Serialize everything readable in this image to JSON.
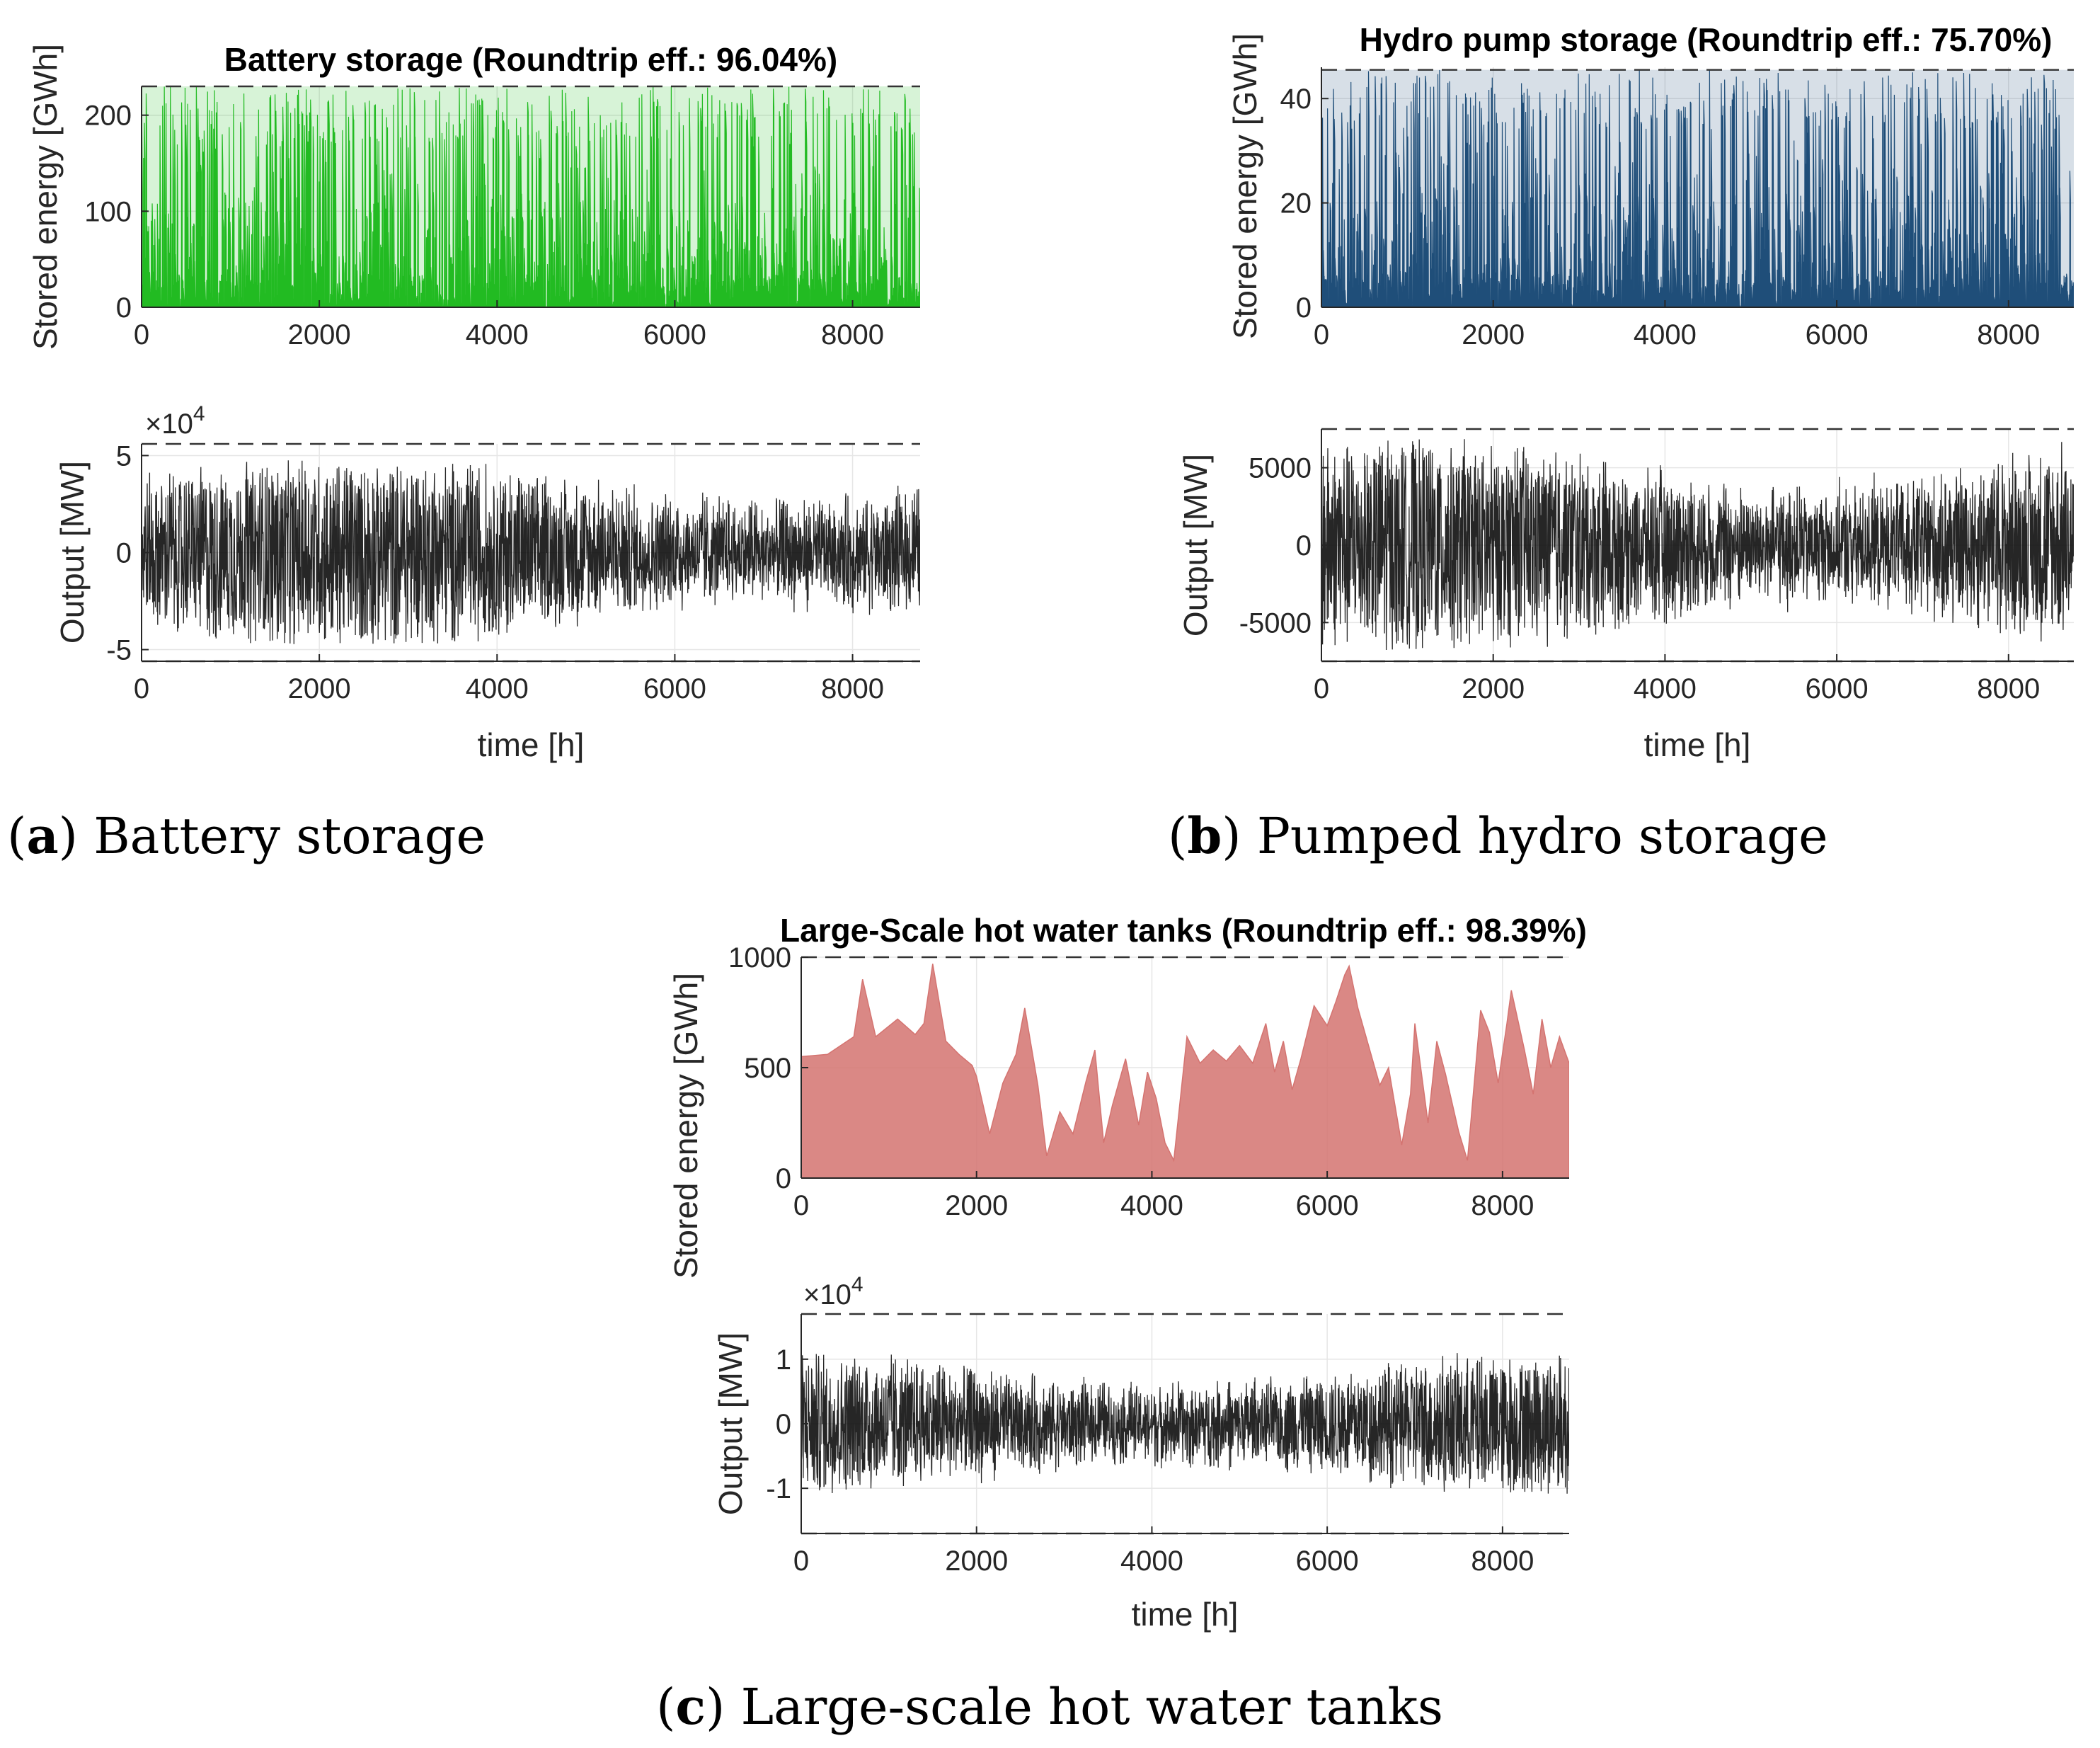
{
  "chart_data": [
    {
      "id": "a",
      "type": "area",
      "title": "Battery storage (Roundtrip eff.: 96.04%)",
      "color": "#22bb22",
      "style": "spiky",
      "storage": {
        "ylabel": "Stored energy [GWh]",
        "xlim": [
          0,
          8760
        ],
        "ylim": [
          0,
          230
        ],
        "xticks": [
          0,
          2000,
          4000,
          6000,
          8000
        ],
        "yticks": [
          0,
          100,
          200
        ],
        "capacity": 230
      },
      "output": {
        "ylabel": "Output [MW]",
        "xlabel": "time [h]",
        "xlim": [
          0,
          8760
        ],
        "ylim": [
          -5.6,
          5.6
        ],
        "xticks": [
          0,
          2000,
          4000,
          6000,
          8000
        ],
        "yticks": [
          -5,
          0,
          5
        ],
        "exponent": "×10",
        "exponent_power": "4",
        "limits": [
          -5.6,
          5.6
        ]
      },
      "caption_letter": "a",
      "caption_text": " Battery storage"
    },
    {
      "id": "b",
      "type": "area",
      "title": "Hydro pump storage (Roundtrip eff.: 75.70%)",
      "color": "#1f4e79",
      "style": "spiky",
      "storage": {
        "ylabel": "Stored energy [GWh]",
        "xlim": [
          0,
          8760
        ],
        "ylim": [
          0,
          46
        ],
        "xticks": [
          0,
          2000,
          4000,
          6000,
          8000
        ],
        "yticks": [
          0,
          20,
          40
        ],
        "capacity": 45.5
      },
      "output": {
        "ylabel": "Output [MW]",
        "xlabel": "time [h]",
        "xlim": [
          0,
          8760
        ],
        "ylim": [
          -7500,
          7500
        ],
        "xticks": [
          0,
          2000,
          4000,
          6000,
          8000
        ],
        "yticks": [
          -5000,
          0,
          5000
        ],
        "exponent": "",
        "exponent_power": "",
        "limits": [
          -7500,
          7500
        ]
      },
      "caption_letter": "b",
      "caption_text": " Pumped hydro storage"
    },
    {
      "id": "c",
      "type": "area",
      "title": "Large-Scale hot water tanks (Roundtrip eff.: 98.39%)",
      "color": "#d47370",
      "style": "smooth",
      "storage": {
        "ylabel": "Stored energy [GWh]",
        "xlim": [
          0,
          8760
        ],
        "ylim": [
          0,
          1000
        ],
        "xticks": [
          0,
          2000,
          4000,
          6000,
          8000
        ],
        "yticks": [
          0,
          500,
          1000
        ],
        "capacity": 1000,
        "envelope": [
          [
            0,
            550
          ],
          [
            300,
            560
          ],
          [
            600,
            640
          ],
          [
            700,
            900
          ],
          [
            850,
            640
          ],
          [
            1100,
            720
          ],
          [
            1300,
            650
          ],
          [
            1400,
            700
          ],
          [
            1500,
            970
          ],
          [
            1650,
            620
          ],
          [
            1800,
            560
          ],
          [
            1950,
            510
          ],
          [
            2000,
            460
          ],
          [
            2150,
            200
          ],
          [
            2300,
            430
          ],
          [
            2450,
            560
          ],
          [
            2550,
            770
          ],
          [
            2700,
            420
          ],
          [
            2800,
            100
          ],
          [
            2950,
            300
          ],
          [
            3100,
            200
          ],
          [
            3250,
            440
          ],
          [
            3350,
            580
          ],
          [
            3450,
            160
          ],
          [
            3550,
            330
          ],
          [
            3700,
            540
          ],
          [
            3850,
            240
          ],
          [
            3950,
            480
          ],
          [
            4050,
            360
          ],
          [
            4150,
            160
          ],
          [
            4250,
            80
          ],
          [
            4400,
            640
          ],
          [
            4550,
            520
          ],
          [
            4700,
            580
          ],
          [
            4850,
            530
          ],
          [
            5000,
            600
          ],
          [
            5150,
            520
          ],
          [
            5300,
            700
          ],
          [
            5400,
            480
          ],
          [
            5500,
            620
          ],
          [
            5600,
            400
          ],
          [
            5700,
            540
          ],
          [
            5850,
            780
          ],
          [
            6000,
            690
          ],
          [
            6100,
            800
          ],
          [
            6200,
            920
          ],
          [
            6250,
            960
          ],
          [
            6350,
            770
          ],
          [
            6450,
            630
          ],
          [
            6600,
            420
          ],
          [
            6700,
            500
          ],
          [
            6850,
            150
          ],
          [
            6950,
            380
          ],
          [
            7000,
            700
          ],
          [
            7150,
            250
          ],
          [
            7250,
            620
          ],
          [
            7350,
            470
          ],
          [
            7500,
            210
          ],
          [
            7600,
            80
          ],
          [
            7750,
            760
          ],
          [
            7850,
            660
          ],
          [
            7950,
            430
          ],
          [
            8050,
            700
          ],
          [
            8100,
            850
          ],
          [
            8250,
            580
          ],
          [
            8350,
            380
          ],
          [
            8450,
            720
          ],
          [
            8550,
            500
          ],
          [
            8650,
            640
          ],
          [
            8760,
            520
          ]
        ]
      },
      "output": {
        "ylabel": "Output [MW]",
        "xlabel": "time [h]",
        "xlim": [
          0,
          8760
        ],
        "ylim": [
          -1.7,
          1.7
        ],
        "xticks": [
          0,
          2000,
          4000,
          6000,
          8000
        ],
        "yticks": [
          -1,
          0,
          1
        ],
        "exponent": "×10",
        "exponent_power": "4",
        "limits": [
          -1.7,
          1.7
        ]
      },
      "caption_letter": "c",
      "caption_text": " Large-scale hot water tanks"
    }
  ]
}
